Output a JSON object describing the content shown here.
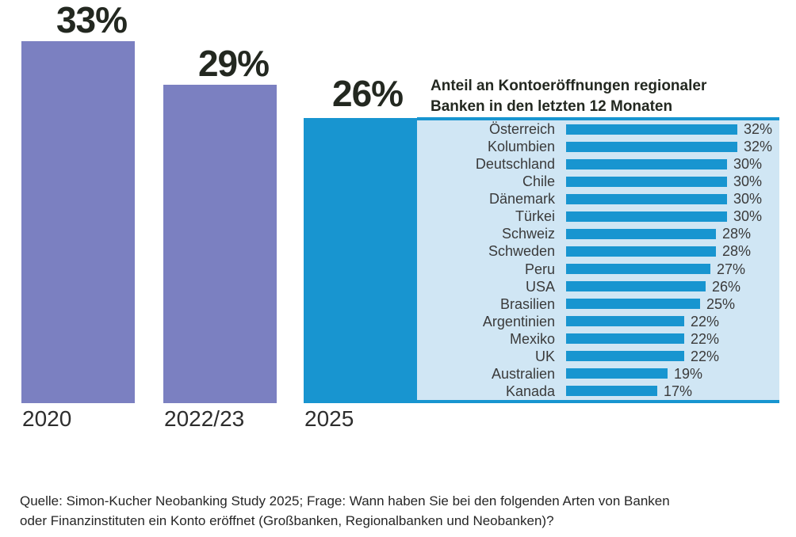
{
  "colors": {
    "purple": "#7b80c1",
    "blue": "#1895d0",
    "light_blue": "#d0e6f4",
    "headline_text": "#232820",
    "row_text": "#3a3a3a",
    "year_text": "#2d2d2d",
    "source_text": "#262626"
  },
  "chart_data": [
    {
      "type": "bar",
      "title": "",
      "xlabel": "",
      "ylabel": "",
      "unit": "%",
      "categories": [
        "2020",
        "2022/23",
        "2025"
      ],
      "values": [
        33,
        29,
        26
      ],
      "bar_colors": [
        "#7b80c1",
        "#7b80c1",
        "#1895d0"
      ],
      "ylim": [
        0,
        33
      ],
      "grid": false,
      "legend": false
    },
    {
      "type": "bar",
      "orientation": "horizontal",
      "title": "Anteil an Kontoeröffnungen regionaler Banken in den letzten 12 Monaten",
      "title_lines": [
        "Anteil an Kontoeröffnungen regionaler",
        "Banken in den letzten 12 Monaten"
      ],
      "unit": "%",
      "categories": [
        "Österreich",
        "Kolumbien",
        "Deutschland",
        "Chile",
        "Dänemark",
        "Türkei",
        "Schweiz",
        "Schweden",
        "Peru",
        "USA",
        "Brasilien",
        "Argentinien",
        "Mexiko",
        "UK",
        "Australien",
        "Kanada"
      ],
      "values": [
        32,
        32,
        30,
        30,
        30,
        30,
        28,
        28,
        27,
        26,
        25,
        22,
        22,
        22,
        19,
        17
      ],
      "xlim": [
        0,
        32
      ],
      "grid": false,
      "legend": false
    }
  ],
  "source_lines": [
    "Quelle: Simon-Kucher Neobanking Study 2025; Frage: Wann haben Sie bei den folgenden Arten von Banken",
    "oder Finanzinstituten ein Konto eröffnet (Großbanken, Regionalbanken und Neobanken)?"
  ]
}
